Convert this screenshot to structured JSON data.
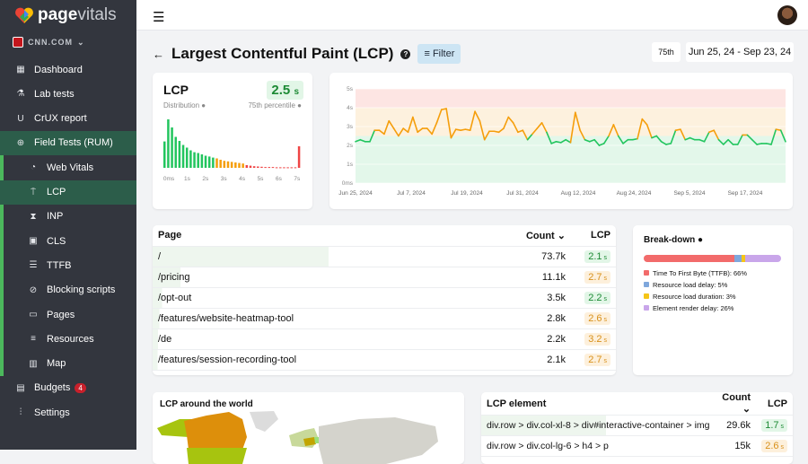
{
  "brand": {
    "name_bold": "page",
    "name_light": "vitals",
    "site": "CNN.COM"
  },
  "sidebar": {
    "items": [
      {
        "label": "Dashboard",
        "icon": "dashboard-icon",
        "level": "top"
      },
      {
        "label": "Lab tests",
        "icon": "flask-icon",
        "level": "top"
      },
      {
        "label": "CrUX report",
        "icon": "magnet-icon",
        "level": "top"
      },
      {
        "label": "Field Tests (RUM)",
        "icon": "globe-icon",
        "level": "top",
        "active": true
      },
      {
        "label": "Web Vitals",
        "icon": "gauge-icon",
        "level": "sub"
      },
      {
        "label": "LCP",
        "icon": "paint-roller-icon",
        "level": "sub",
        "active": true
      },
      {
        "label": "INP",
        "icon": "hourglass-icon",
        "level": "sub"
      },
      {
        "label": "CLS",
        "icon": "layout-shift-icon",
        "level": "sub"
      },
      {
        "label": "TTFB",
        "icon": "server-icon",
        "level": "sub"
      },
      {
        "label": "Blocking scripts",
        "icon": "ban-icon",
        "level": "sub"
      },
      {
        "label": "Pages",
        "icon": "window-icon",
        "level": "sub"
      },
      {
        "label": "Resources",
        "icon": "list-icon",
        "level": "sub"
      },
      {
        "label": "Map",
        "icon": "map-icon",
        "level": "sub"
      },
      {
        "label": "Budgets",
        "icon": "budget-icon",
        "level": "top",
        "badge": "4"
      },
      {
        "label": "Settings",
        "icon": "sliders-icon",
        "level": "top"
      }
    ]
  },
  "header": {
    "title": "Largest Contentful Paint (LCP)",
    "filter": "Filter",
    "percentile": "75th",
    "date_range": "Jun 25, 24 - Sep 23, 24"
  },
  "summary": {
    "title": "LCP",
    "value": "2.5",
    "unit": "s",
    "distribution_label": "Distribution",
    "percentile_label": "75th percentile",
    "dist_ticks": [
      "0ms",
      "1s",
      "2s",
      "3s",
      "4s",
      "5s",
      "6s",
      "7s"
    ],
    "dist_bars": [
      98,
      180,
      150,
      115,
      100,
      85,
      75,
      65,
      58,
      55,
      50,
      45,
      42,
      38,
      35,
      30,
      26,
      24,
      22,
      20,
      18,
      16,
      10,
      8,
      6,
      5,
      4,
      3,
      3,
      3,
      2,
      2,
      2,
      2,
      2,
      2,
      80
    ]
  },
  "chart_data": {
    "type": "line",
    "ylim": [
      0,
      5
    ],
    "yticks": [
      "0ms",
      "1s",
      "2s",
      "3s",
      "4s",
      "5s"
    ],
    "xticks": [
      "Jun 25, 2024",
      "Jul 7, 2024",
      "Jul 19, 2024",
      "Jul 31, 2024",
      "Aug 12, 2024",
      "Aug 24, 2024",
      "Sep 5, 2024",
      "Sep 17, 2024"
    ],
    "thresholds": {
      "good": 2.5,
      "poor": 4
    },
    "colors": {
      "good": "#22c55e",
      "mid": "#f59e0b",
      "good_bg": "#e3f7ea",
      "mid_bg": "#fdf1de",
      "poor_bg": "#fde5e3"
    },
    "values": [
      2.2,
      2.3,
      2.2,
      2.2,
      2.8,
      2.8,
      2.6,
      3.3,
      2.9,
      2.5,
      2.9,
      2.7,
      3.5,
      2.7,
      2.9,
      2.9,
      2.6,
      3.2,
      3.9,
      3.95,
      2.4,
      2.85,
      2.8,
      2.85,
      2.8,
      3.8,
      3.3,
      2.3,
      2.75,
      2.75,
      2.7,
      2.9,
      3.5,
      3.2,
      2.7,
      2.8,
      2.3,
      2.6,
      2.9,
      3.2,
      2.7,
      2.1,
      2.2,
      2.15,
      2.3,
      2.15,
      3.75,
      2.8,
      2.3,
      2.2,
      2.3,
      2.0,
      2.1,
      2.5,
      3.1,
      2.5,
      2.1,
      2.3,
      2.3,
      2.35,
      3.4,
      3.1,
      2.4,
      2.5,
      2.2,
      2.05,
      2.1,
      2.8,
      2.85,
      2.3,
      2.4,
      2.3,
      2.3,
      2.2,
      2.7,
      2.8,
      2.3,
      2.05,
      2.3,
      2.05,
      2.05,
      2.55,
      2.55,
      2.3,
      2.05,
      2.1,
      2.1,
      2.05,
      2.85,
      2.8,
      2.2
    ]
  },
  "pages": {
    "headers": {
      "page": "Page",
      "count": "Count",
      "lcp": "LCP"
    },
    "unit": "s",
    "rows": [
      {
        "page": "/",
        "count": "73.7k",
        "lcp": "2.1",
        "status": "good",
        "share": 0.38
      },
      {
        "page": "/pricing",
        "count": "11.1k",
        "lcp": "2.7",
        "status": "mid",
        "share": 0.06
      },
      {
        "page": "/opt-out",
        "count": "3.5k",
        "lcp": "2.2",
        "status": "good",
        "share": 0.02
      },
      {
        "page": "/features/website-heatmap-tool",
        "count": "2.8k",
        "lcp": "2.6",
        "status": "mid",
        "share": 0.015
      },
      {
        "page": "/de",
        "count": "2.2k",
        "lcp": "3.2",
        "status": "mid",
        "share": 0.012
      },
      {
        "page": "/features/session-recording-tool",
        "count": "2.1k",
        "lcp": "2.7",
        "status": "mid",
        "share": 0.011
      }
    ]
  },
  "breakdown": {
    "title": "Break-down",
    "items": [
      {
        "label": "Time To First Byte (TTFB): 66%",
        "pct": 66,
        "color": "#f26b6b"
      },
      {
        "label": "Resource load delay: 5%",
        "pct": 5,
        "color": "#7fa7dc"
      },
      {
        "label": "Resource load duration: 3%",
        "pct": 3,
        "color": "#f5c518"
      },
      {
        "label": "Element render delay: 26%",
        "pct": 26,
        "color": "#c9a6ea"
      }
    ]
  },
  "world": {
    "title": "LCP around the world"
  },
  "elements": {
    "headers": {
      "element": "LCP element",
      "count": "Count",
      "lcp": "LCP"
    },
    "unit": "s",
    "rows": [
      {
        "element": "div.row > div.col-xl-8 > div#interactive-container > img",
        "count": "29.6k",
        "lcp": "1.7",
        "status": "good"
      },
      {
        "element": "div.row > div.col-lg-6 > h4 > p",
        "count": "15k",
        "lcp": "2.6",
        "status": "mid"
      }
    ]
  }
}
